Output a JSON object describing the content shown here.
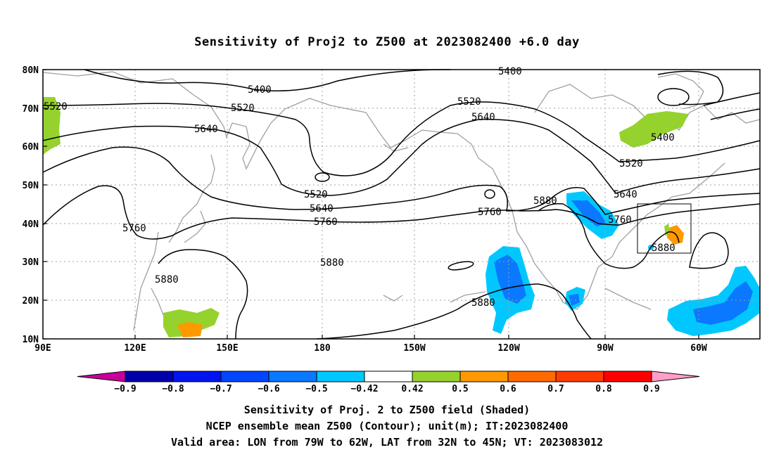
{
  "title": "Sensitivity of Proj2 to Z500 at 2023082400 +6.0 day",
  "lat_labels": [
    "80N",
    "70N",
    "60N",
    "50N",
    "40N",
    "30N",
    "20N",
    "10N"
  ],
  "lon_labels": [
    "90E",
    "120E",
    "150E",
    "180",
    "150W",
    "120W",
    "90W",
    "60W"
  ],
  "contour_labels": [
    "5400",
    "5400",
    "5520",
    "5520",
    "5520",
    "5520",
    "5520",
    "5640",
    "5640",
    "5640",
    "5640",
    "5760",
    "5760",
    "5760",
    "5760",
    "5880",
    "5880",
    "5880",
    "5880",
    "5880",
    "5400"
  ],
  "colorbar": {
    "tick_labels": [
      "-0.9",
      "-0.8",
      "-0.7",
      "-0.6",
      "-0.5",
      "-0.42",
      "0.42",
      "0.5",
      "0.6",
      "0.7",
      "0.8",
      "0.9"
    ],
    "colors": [
      "#c8009b",
      "#0000aa",
      "#0014f0",
      "#0046ff",
      "#0a78ff",
      "#00c8ff",
      "#ffffff",
      "#96d22d",
      "#ff9900",
      "#ff6a00",
      "#ff3c00",
      "#ff0000",
      "#ff9ec8"
    ]
  },
  "captions": [
    "Sensitivity of Proj. 2 to Z500 field (Shaded)",
    "NCEP ensemble mean Z500 (Contour); unit(m); IT:2023082400",
    "Valid area: LON from 79W to 62W, LAT from 32N to 45N; VT: 2023083012"
  ]
}
